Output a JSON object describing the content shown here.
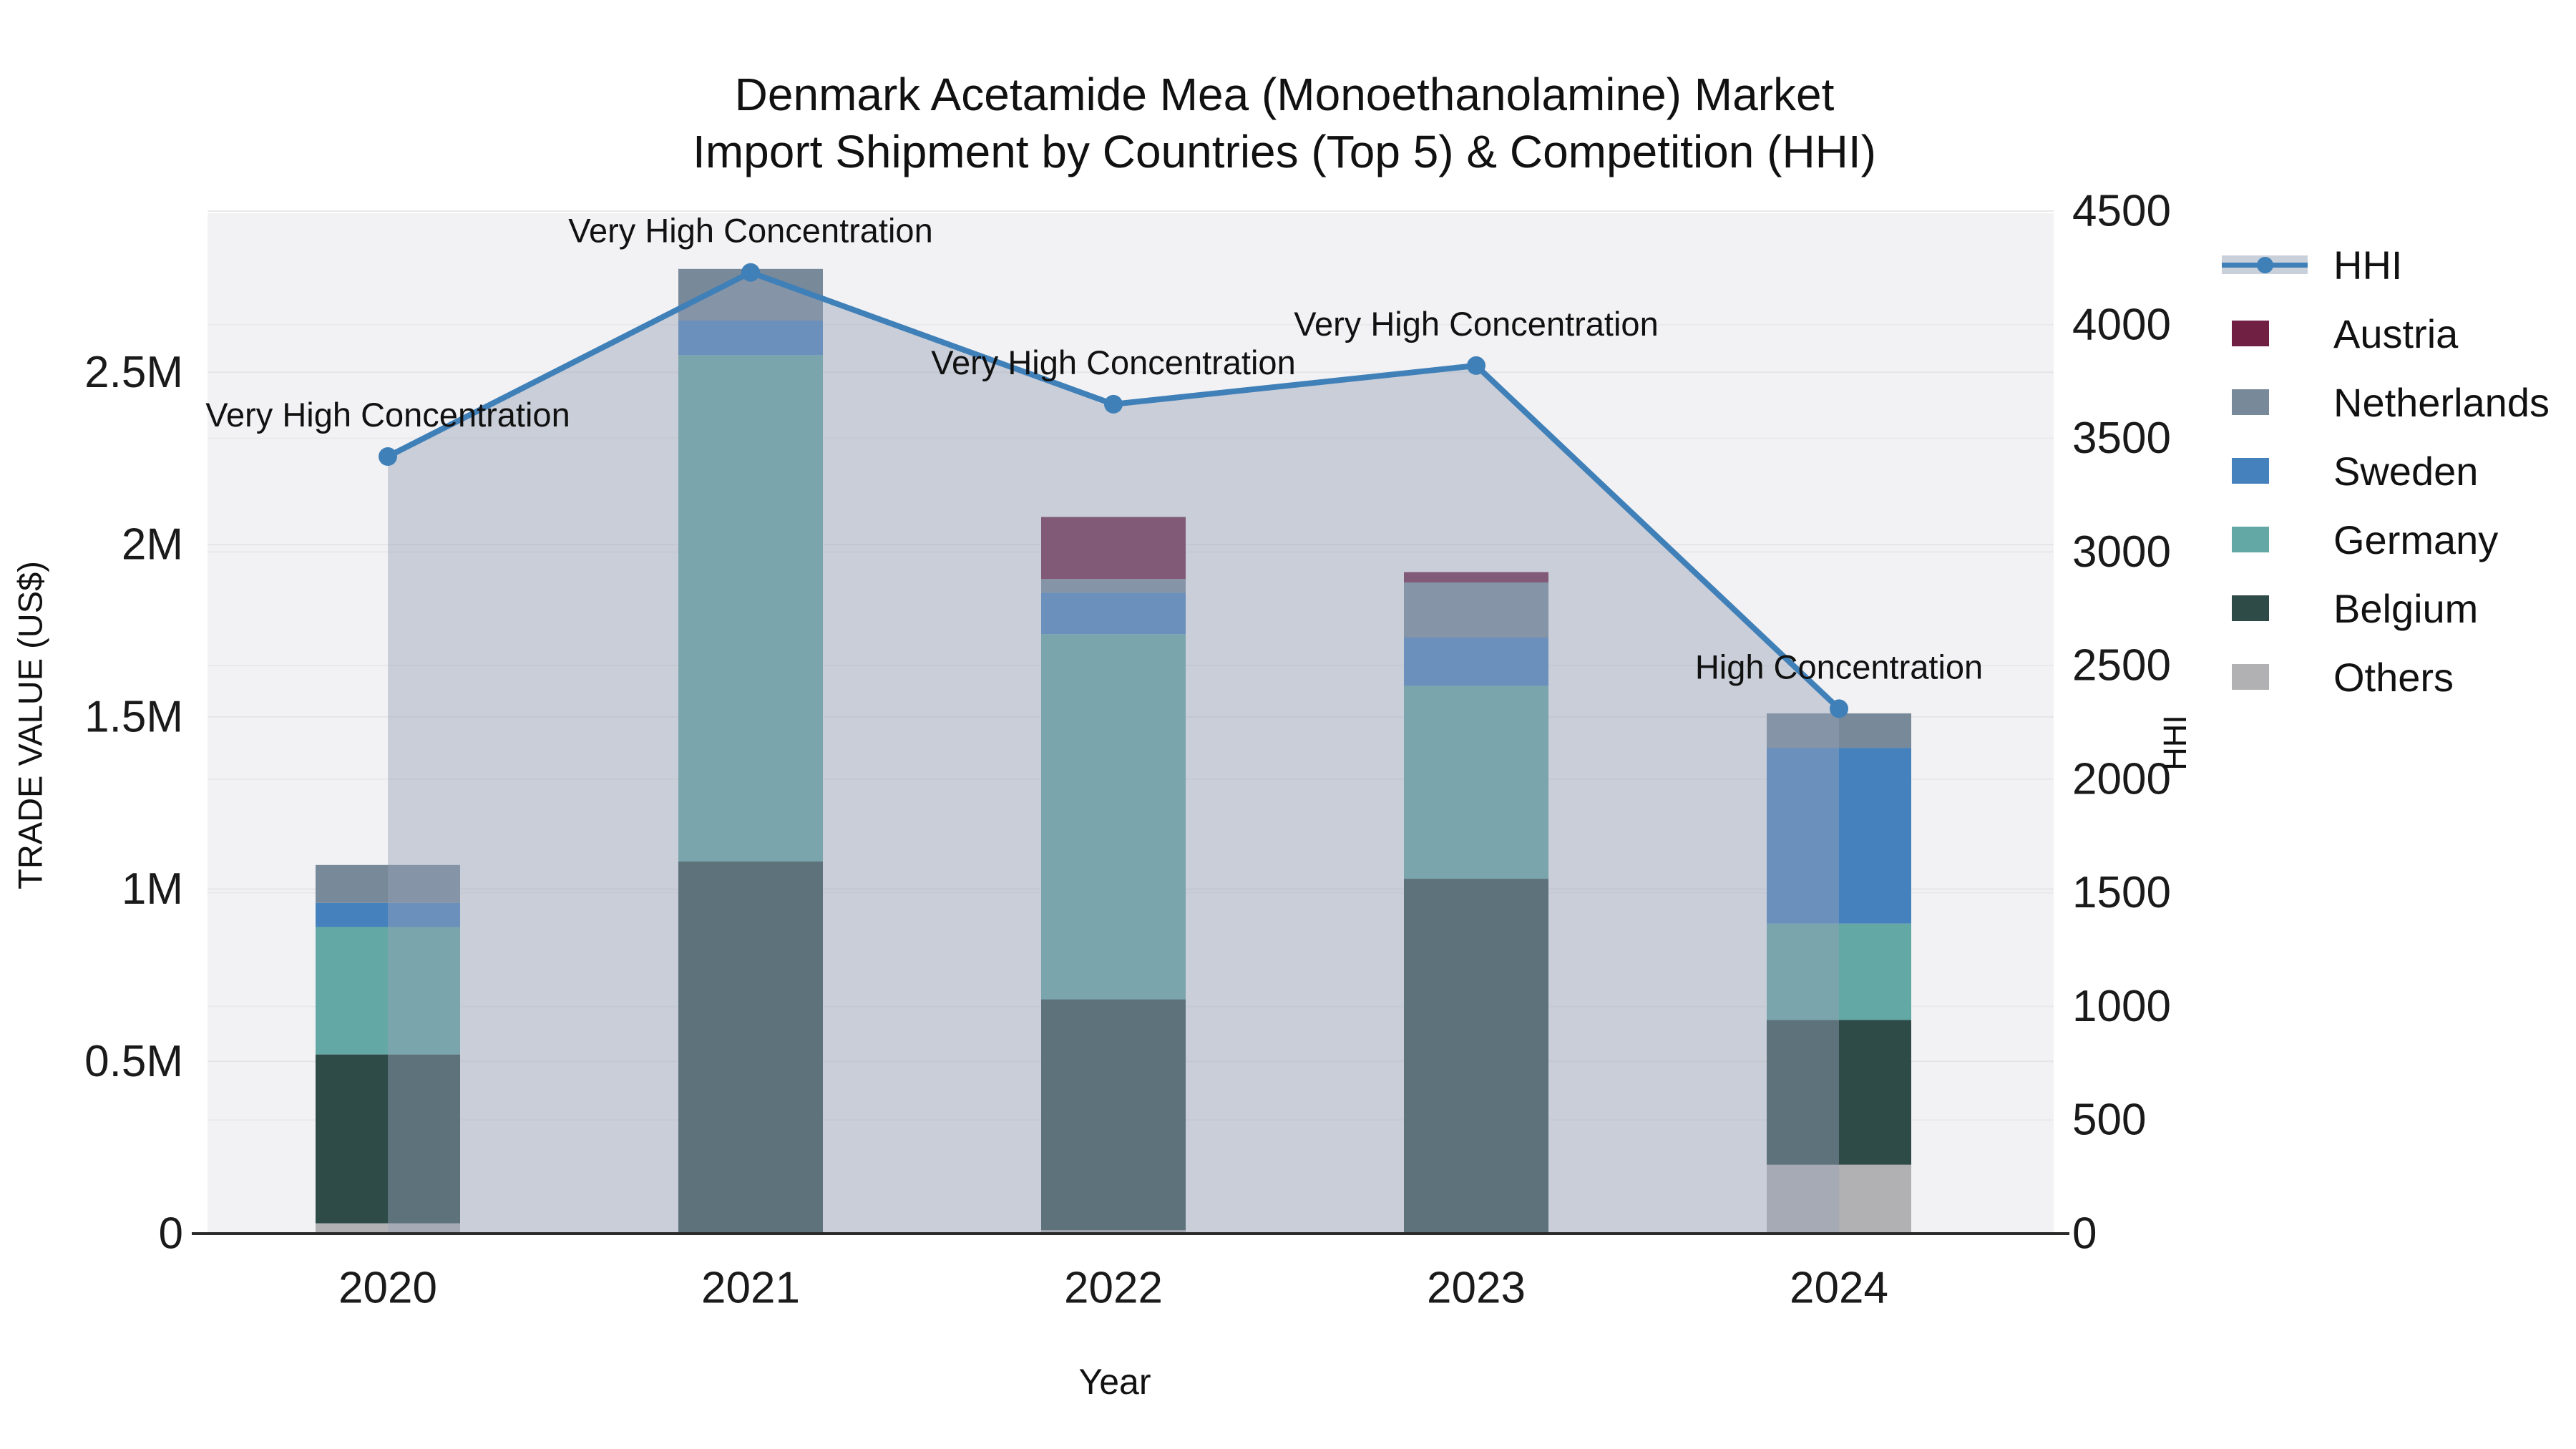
{
  "title": {
    "line1": "Denmark Acetamide Mea (Monoethanolamine) Market",
    "line2": "Import Shipment by Countries (Top 5) & Competition (HHI)"
  },
  "axes": {
    "x": {
      "title": "Year",
      "ticks": [
        "2020",
        "2021",
        "2022",
        "2023",
        "2024"
      ]
    },
    "y_left": {
      "title": "TRADE VALUE (US$)",
      "ticks": [
        {
          "label": "0",
          "value": 0
        },
        {
          "label": "0.5M",
          "value": 0.5
        },
        {
          "label": "1M",
          "value": 1
        },
        {
          "label": "1.5M",
          "value": 1.5
        },
        {
          "label": "2M",
          "value": 2
        },
        {
          "label": "2.5M",
          "value": 2.5
        }
      ]
    },
    "y_right": {
      "title": "HHI",
      "ticks": [
        {
          "label": "0",
          "value": 0
        },
        {
          "label": "500",
          "value": 500
        },
        {
          "label": "1000",
          "value": 1000
        },
        {
          "label": "1500",
          "value": 1500
        },
        {
          "label": "2000",
          "value": 2000
        },
        {
          "label": "2500",
          "value": 2500
        },
        {
          "label": "3000",
          "value": 3000
        },
        {
          "label": "3500",
          "value": 3500
        },
        {
          "label": "4000",
          "value": 4000
        },
        {
          "label": "4500",
          "value": 4500
        }
      ]
    }
  },
  "legend": [
    {
      "label": "HHI",
      "type": "line",
      "color": "#4080b8"
    },
    {
      "label": "Austria",
      "type": "swatch",
      "color": "#6f2043"
    },
    {
      "label": "Netherlands",
      "type": "swatch",
      "color": "#78899a"
    },
    {
      "label": "Sweden",
      "type": "swatch",
      "color": "#4581bd"
    },
    {
      "label": "Germany",
      "type": "swatch",
      "color": "#64a8a5"
    },
    {
      "label": "Belgium",
      "type": "swatch",
      "color": "#2e4b48"
    },
    {
      "label": "Others",
      "type": "swatch",
      "color": "#b1b1b3"
    }
  ],
  "chart_data": {
    "type": "bar",
    "subtype": "stacked-bars-with-line-overlay",
    "title": "Denmark Acetamide Mea (Monoethanolamine) Market Import Shipment by Countries (Top 5) & Competition (HHI)",
    "xlabel": "Year",
    "ylabel": "TRADE VALUE (US$)",
    "ylabel_right": "HHI",
    "categories": [
      "2020",
      "2021",
      "2022",
      "2023",
      "2024"
    ],
    "bar_unit": "million US$",
    "ylim_left": [
      0,
      2.96
    ],
    "ylim_right": [
      0,
      4500
    ],
    "grid": true,
    "legend_position": "right",
    "series": [
      {
        "name": "Others",
        "color": "#b1b1b3",
        "values": [
          0.03,
          0.0,
          0.01,
          0.0,
          0.2
        ]
      },
      {
        "name": "Belgium",
        "color": "#2e4b48",
        "values": [
          0.49,
          1.08,
          0.67,
          1.03,
          0.42
        ]
      },
      {
        "name": "Germany",
        "color": "#64a8a5",
        "values": [
          0.37,
          1.47,
          1.06,
          0.56,
          0.28
        ]
      },
      {
        "name": "Sweden",
        "color": "#4581bd",
        "values": [
          0.07,
          0.1,
          0.12,
          0.14,
          0.51
        ]
      },
      {
        "name": "Netherlands",
        "color": "#78899a",
        "values": [
          0.11,
          0.15,
          0.04,
          0.16,
          0.1
        ]
      },
      {
        "name": "Austria",
        "color": "#6f2043",
        "values": [
          0.0,
          0.0,
          0.18,
          0.03,
          0.0
        ]
      }
    ],
    "bar_totals": [
      1.07,
      2.8,
      2.08,
      1.92,
      1.51
    ],
    "line_series": {
      "name": "HHI",
      "axis": "right",
      "color": "#4080b8",
      "area_fill": "rgba(151,162,183,0.45)",
      "values": [
        3420,
        4230,
        3650,
        3820,
        2310
      ]
    },
    "annotations": [
      {
        "x": "2020",
        "text": "Very High Concentration"
      },
      {
        "x": "2021",
        "text": "Very High Concentration"
      },
      {
        "x": "2022",
        "text": "Very High Concentration"
      },
      {
        "x": "2023",
        "text": "Very High Concentration"
      },
      {
        "x": "2024",
        "text": "High Concentration"
      }
    ]
  }
}
